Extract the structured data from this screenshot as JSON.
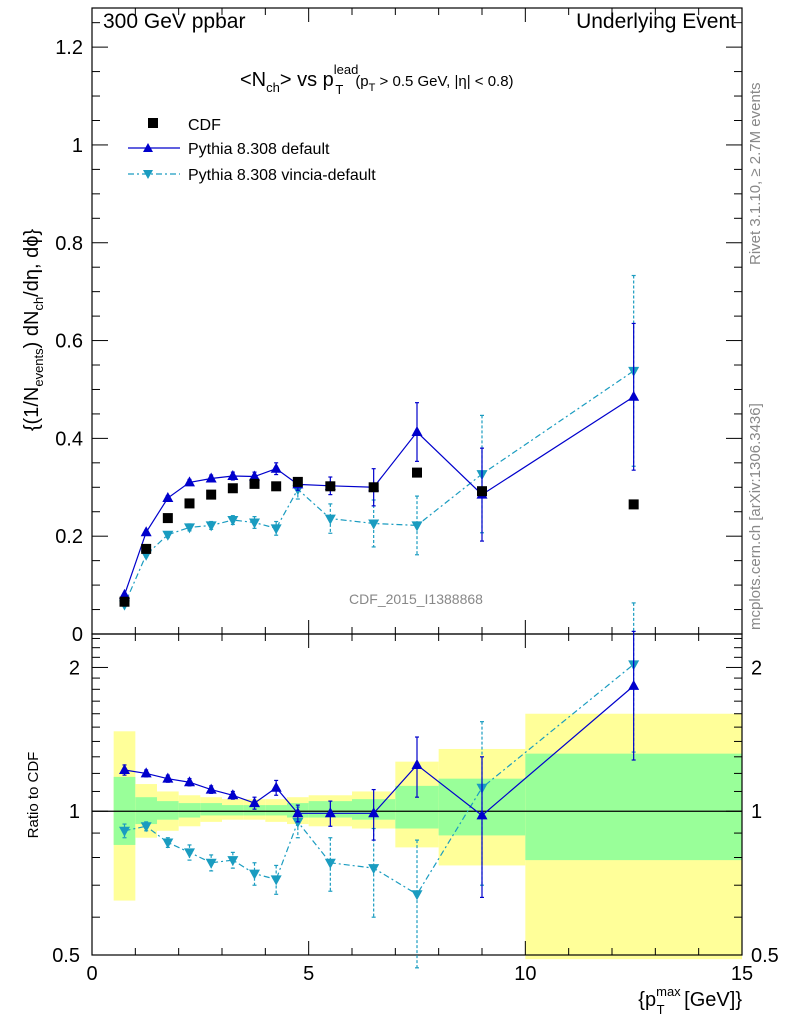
{
  "header": {
    "left": "300 GeV ppbar",
    "right": "Underlying Event"
  },
  "side": {
    "rivet": "Rivet 3.1.10, ≥ 2.7M events",
    "mcplots": "mcplots.cern.ch [arXiv:1306.3436]"
  },
  "watermark": "CDF_2015_I1388868",
  "colors": {
    "cdf": "#000000",
    "pythia_default": "#0000cc",
    "vincia": "#1a9cc0",
    "band_yellow": "#ffff99",
    "band_green": "#99ff99"
  },
  "chart_data": [
    {
      "type": "scatter",
      "title": "<Nch> vs pT lead (pT > 0.5 GeV, |η| < 0.8)",
      "ylabel": "{(1/Nevents) dNch/dη, dφ}",
      "xlim": [
        0,
        15
      ],
      "ylim": [
        0,
        1.28
      ],
      "yticks": [
        0,
        0.2,
        0.4,
        0.6,
        0.8,
        1,
        1.2
      ],
      "ytick_labels": [
        "0",
        "0.2",
        "0.4",
        "0.6",
        "0.8",
        "1",
        "1.2"
      ],
      "legend_position": "top-left",
      "series": [
        {
          "name": "CDF",
          "marker": "square",
          "x": [
            0.75,
            1.25,
            1.75,
            2.25,
            2.75,
            3.25,
            3.75,
            4.25,
            4.75,
            5.5,
            6.5,
            7.5,
            9.0,
            12.5
          ],
          "y": [
            0.066,
            0.174,
            0.237,
            0.267,
            0.285,
            0.298,
            0.307,
            0.302,
            0.311,
            0.302,
            0.3,
            0.33,
            0.292,
            0.265
          ]
        },
        {
          "name": "Pythia 8.308 default",
          "marker": "triangle-up",
          "x": [
            0.75,
            1.25,
            1.75,
            2.25,
            2.75,
            3.25,
            3.75,
            4.25,
            4.75,
            5.5,
            6.5,
            7.5,
            9.0,
            12.5
          ],
          "y": [
            0.08,
            0.208,
            0.278,
            0.31,
            0.318,
            0.323,
            0.322,
            0.338,
            0.306,
            0.303,
            0.3,
            0.413,
            0.285,
            0.485
          ],
          "err": [
            0.003,
            0.004,
            0.005,
            0.006,
            0.007,
            0.008,
            0.009,
            0.012,
            0.012,
            0.018,
            0.038,
            0.06,
            0.095,
            0.15
          ]
        },
        {
          "name": "Pythia 8.308 vincia-default",
          "marker": "triangle-down",
          "x": [
            0.75,
            1.25,
            1.75,
            2.25,
            2.75,
            3.25,
            3.75,
            4.25,
            4.75,
            5.5,
            6.5,
            7.5,
            9.0,
            12.5
          ],
          "y": [
            0.06,
            0.162,
            0.203,
            0.218,
            0.222,
            0.233,
            0.228,
            0.216,
            0.296,
            0.236,
            0.226,
            0.222,
            0.327,
            0.538
          ],
          "err": [
            0.003,
            0.004,
            0.006,
            0.007,
            0.008,
            0.009,
            0.012,
            0.014,
            0.02,
            0.03,
            0.048,
            0.06,
            0.12,
            0.195
          ]
        }
      ]
    },
    {
      "type": "scatter",
      "ylabel": "Ratio to CDF",
      "xlabel": "{pT max [GeV]}",
      "xlim": [
        0,
        15
      ],
      "ylim": [
        0.5,
        2.35
      ],
      "log_y": true,
      "xticks": [
        0,
        5,
        10,
        15
      ],
      "xtick_labels": [
        "0",
        "5",
        "10",
        "15"
      ],
      "yticks": [
        0.5,
        1,
        2
      ],
      "ytick_labels": [
        "0.5",
        "1",
        "2"
      ],
      "bands": {
        "edges": [
          0.5,
          1.0,
          1.5,
          2.0,
          2.5,
          3.0,
          3.5,
          4.0,
          4.5,
          5.0,
          6.0,
          7.0,
          8.0,
          10.0,
          15.0
        ],
        "yellow_low": [
          0.65,
          0.88,
          0.91,
          0.93,
          0.95,
          0.96,
          0.96,
          0.95,
          0.94,
          0.93,
          0.92,
          0.84,
          0.77,
          0.49
        ],
        "yellow_high": [
          1.47,
          1.14,
          1.1,
          1.08,
          1.07,
          1.06,
          1.06,
          1.06,
          1.07,
          1.08,
          1.1,
          1.27,
          1.35,
          1.6
        ],
        "green_low": [
          0.85,
          0.94,
          0.96,
          0.97,
          0.98,
          0.98,
          0.98,
          0.98,
          0.97,
          0.97,
          0.96,
          0.92,
          0.89,
          0.79
        ],
        "green_high": [
          1.18,
          1.07,
          1.05,
          1.04,
          1.04,
          1.03,
          1.03,
          1.03,
          1.04,
          1.05,
          1.06,
          1.13,
          1.17,
          1.32
        ]
      },
      "series": [
        {
          "name": "Pythia 8.308 default",
          "marker": "triangle-up",
          "x": [
            0.75,
            1.25,
            1.75,
            2.25,
            2.75,
            3.25,
            3.75,
            4.25,
            4.75,
            5.5,
            6.5,
            7.5,
            9.0,
            12.5
          ],
          "y": [
            1.22,
            1.2,
            1.17,
            1.15,
            1.11,
            1.08,
            1.04,
            1.12,
            0.99,
            0.99,
            0.99,
            1.25,
            0.98,
            1.83
          ],
          "err": [
            0.03,
            0.02,
            0.02,
            0.02,
            0.02,
            0.02,
            0.03,
            0.04,
            0.04,
            0.06,
            0.12,
            0.18,
            0.32,
            0.55
          ]
        },
        {
          "name": "Pythia 8.308 vincia-default",
          "marker": "triangle-down",
          "x": [
            0.75,
            1.25,
            1.75,
            2.25,
            2.75,
            3.25,
            3.75,
            4.25,
            4.75,
            5.5,
            6.5,
            7.5,
            9.0,
            12.5
          ],
          "y": [
            0.91,
            0.93,
            0.86,
            0.82,
            0.78,
            0.79,
            0.74,
            0.72,
            0.95,
            0.78,
            0.76,
            0.67,
            1.12,
            2.03
          ],
          "err": [
            0.03,
            0.02,
            0.02,
            0.03,
            0.03,
            0.03,
            0.04,
            0.05,
            0.07,
            0.1,
            0.16,
            0.2,
            0.42,
            0.7
          ]
        }
      ]
    }
  ]
}
